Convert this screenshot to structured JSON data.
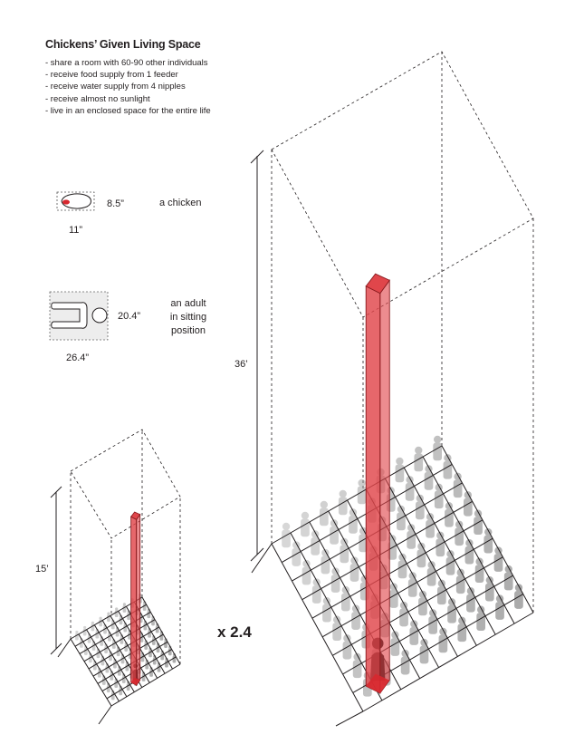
{
  "heading": {
    "title": "Chickens’ Given Living Space",
    "bullets": [
      "- share a room with 60-90 other individuals",
      "- receive food supply  from 1 feeder",
      "- receive water supply from 4 nipples",
      "- receive almost no sunlight",
      "- live in an enclosed space for the entire life"
    ]
  },
  "legend": {
    "chicken": {
      "caption": "a chicken",
      "depth": "8.5”",
      "width": "11”"
    },
    "adult": {
      "caption_lines": [
        "an adult",
        "in sitting",
        "position"
      ],
      "depth": "20.4”",
      "width": "26.4”"
    }
  },
  "small_room": {
    "height": "15’"
  },
  "large_room": {
    "height": "36’"
  },
  "scale_factor": "x 2.4",
  "colors": {
    "column_fill": "#e0464b",
    "column_stroke": "#8a1b1f",
    "grid": "#231f20",
    "person_gray": "#8f8f8f",
    "chicken_red": "#d7282f"
  }
}
